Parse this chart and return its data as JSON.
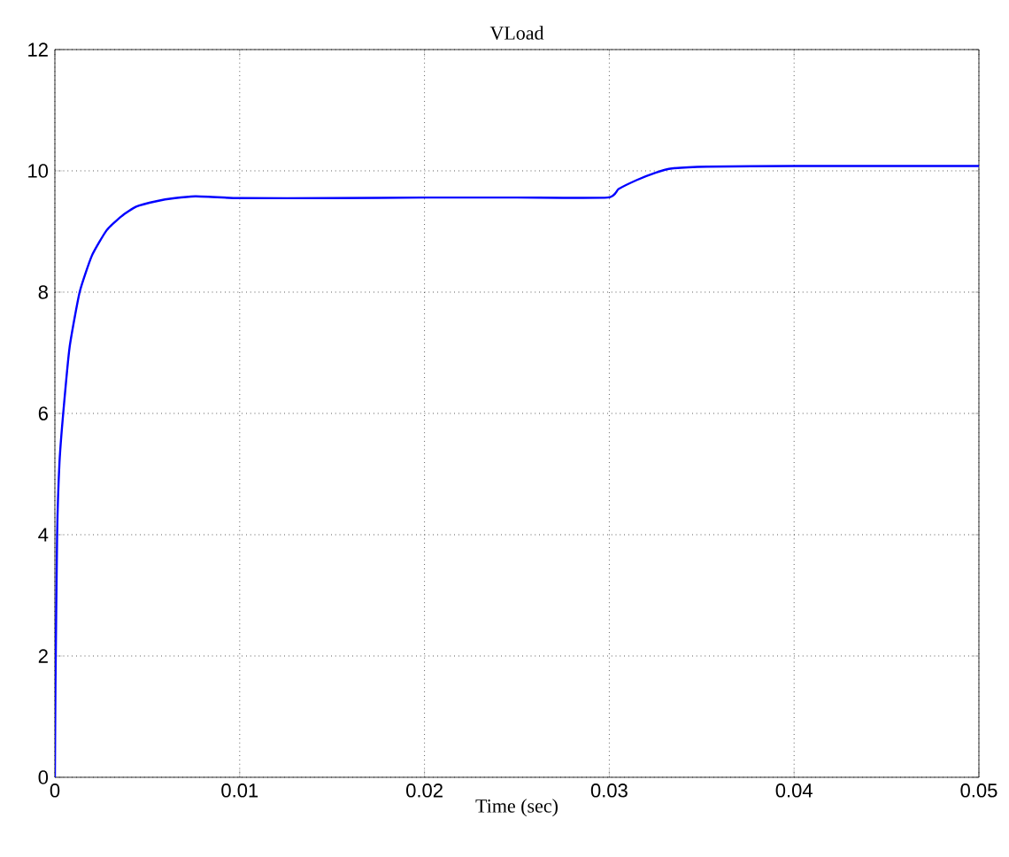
{
  "chart_data": {
    "type": "line",
    "title": "VLoad",
    "xlabel": "Time (sec)",
    "x": [
      0,
      3e-05,
      0.00012,
      0.00025,
      0.00045,
      0.0008,
      0.00134,
      0.002,
      0.0028,
      0.0036,
      0.0044,
      0.0055,
      0.0065,
      0.0076,
      0.0085,
      0.01,
      0.015,
      0.02,
      0.025,
      0.0299,
      0.0305,
      0.0315,
      0.0325,
      0.0334,
      0.0353,
      0.04,
      0.045,
      0.05
    ],
    "series": [
      {
        "color": "#0000ff",
        "values": [
          0,
          1.5,
          4,
          5.2,
          6,
          7.1,
          8,
          8.6,
          9.02,
          9.25,
          9.41,
          9.5,
          9.55,
          9.58,
          9.57,
          9.55,
          9.55,
          9.56,
          9.56,
          9.56,
          9.7,
          9.85,
          9.97,
          10.04,
          10.07,
          10.08,
          10.08,
          10.08
        ]
      }
    ],
    "xlim": [
      0,
      0.05
    ],
    "ylim": [
      0,
      12
    ],
    "xticks": [
      0,
      0.01,
      0.02,
      0.03,
      0.04,
      0.05
    ],
    "yticks": [
      0,
      2,
      4,
      6,
      8,
      10,
      12
    ],
    "grid": true,
    "marker": "none",
    "line_style": "solid"
  }
}
